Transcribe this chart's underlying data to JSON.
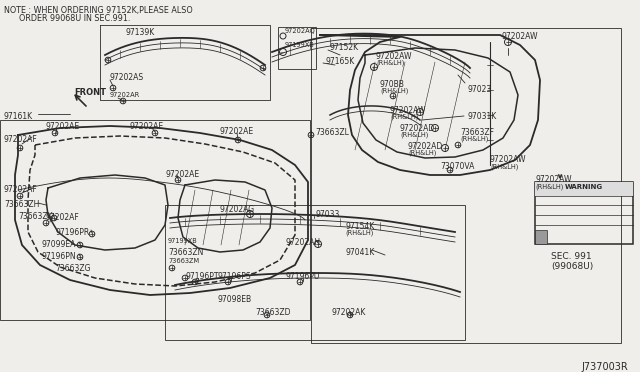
{
  "bg_color": "#f0eeea",
  "line_color": "#2a2a2a",
  "diagram_id": "J737003R",
  "note_line1": "NOTE : WHEN ORDERING 97152K,PLEASE ALSO",
  "note_line2": "      ORDER 99068U IN SEC.991.",
  "sec_line1": "SEC. 991",
  "sec_line2": "(99068U)",
  "warning_text": "WARNING",
  "front_label": "FRONT",
  "fs": 5.5,
  "fs_sm": 4.8,
  "lw_main": 1.1,
  "lw_thin": 0.6,
  "lw_dash": 0.5
}
